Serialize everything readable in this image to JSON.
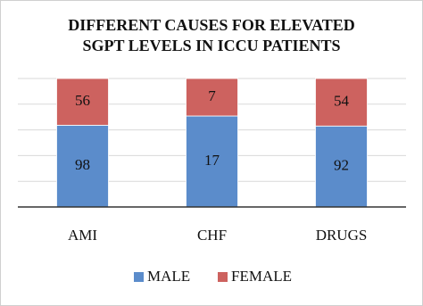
{
  "chart_data": {
    "type": "bar",
    "stacking": "percent",
    "title": [
      "DIFFERENT CAUSES FOR ELEVATED",
      "SGPT LEVELS IN ICCU PATIENTS"
    ],
    "categories": [
      "AMI",
      "CHF",
      "DRUGS"
    ],
    "series": [
      {
        "name": "MALE",
        "color": "#5b8ccb",
        "values": [
          98,
          17,
          92
        ]
      },
      {
        "name": "FEMALE",
        "color": "#cd625f",
        "values": [
          56,
          7,
          54
        ]
      }
    ],
    "ylim": [
      0,
      100
    ],
    "yticks": [
      0,
      20,
      40,
      60,
      80,
      100
    ],
    "show_ytick_labels": false,
    "grid": true,
    "legend": "bottom"
  }
}
